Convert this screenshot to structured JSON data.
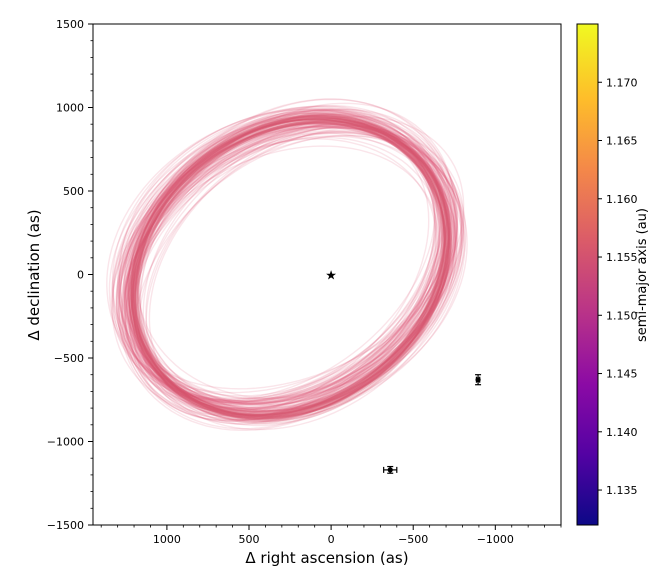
{
  "chart_data": {
    "type": "scatter",
    "title": "",
    "xlabel": "Δ right ascension (as)",
    "ylabel": "Δ declination (as)",
    "xlim": [
      1450,
      -1400
    ],
    "ylim": [
      -1500,
      1500
    ],
    "x_inverted": true,
    "x_ticks": [
      1000,
      500,
      0,
      -500,
      -1000
    ],
    "x_tick_labels": [
      "1000",
      "500",
      "0",
      "−500",
      "−1000"
    ],
    "y_ticks": [
      -1500,
      -1000,
      -500,
      0,
      500,
      1000,
      1500
    ],
    "y_tick_labels": [
      "−1500",
      "−1000",
      "−500",
      "0",
      "500",
      "1000",
      "1500"
    ],
    "grid": false,
    "star": {
      "x": 0,
      "y": 0,
      "symbol": "★"
    },
    "observations": [
      {
        "x": -360,
        "y": -1170,
        "xerr": 40,
        "yerr": 20
      },
      {
        "x": -895,
        "y": -630,
        "xerr": 10,
        "yerr": 30
      }
    ],
    "orbit_tracks": {
      "color": "#e0607a",
      "description_count": 60
    },
    "colorbar": {
      "label": "semi-major axis (au)",
      "range": [
        1.132,
        1.175
      ],
      "ticks": [
        1.135,
        1.14,
        1.145,
        1.15,
        1.155,
        1.16,
        1.165,
        1.17
      ],
      "tick_labels": [
        "1.135",
        "1.140",
        "1.145",
        "1.150",
        "1.155",
        "1.160",
        "1.165",
        "1.170"
      ],
      "colormap": "plasma"
    }
  }
}
